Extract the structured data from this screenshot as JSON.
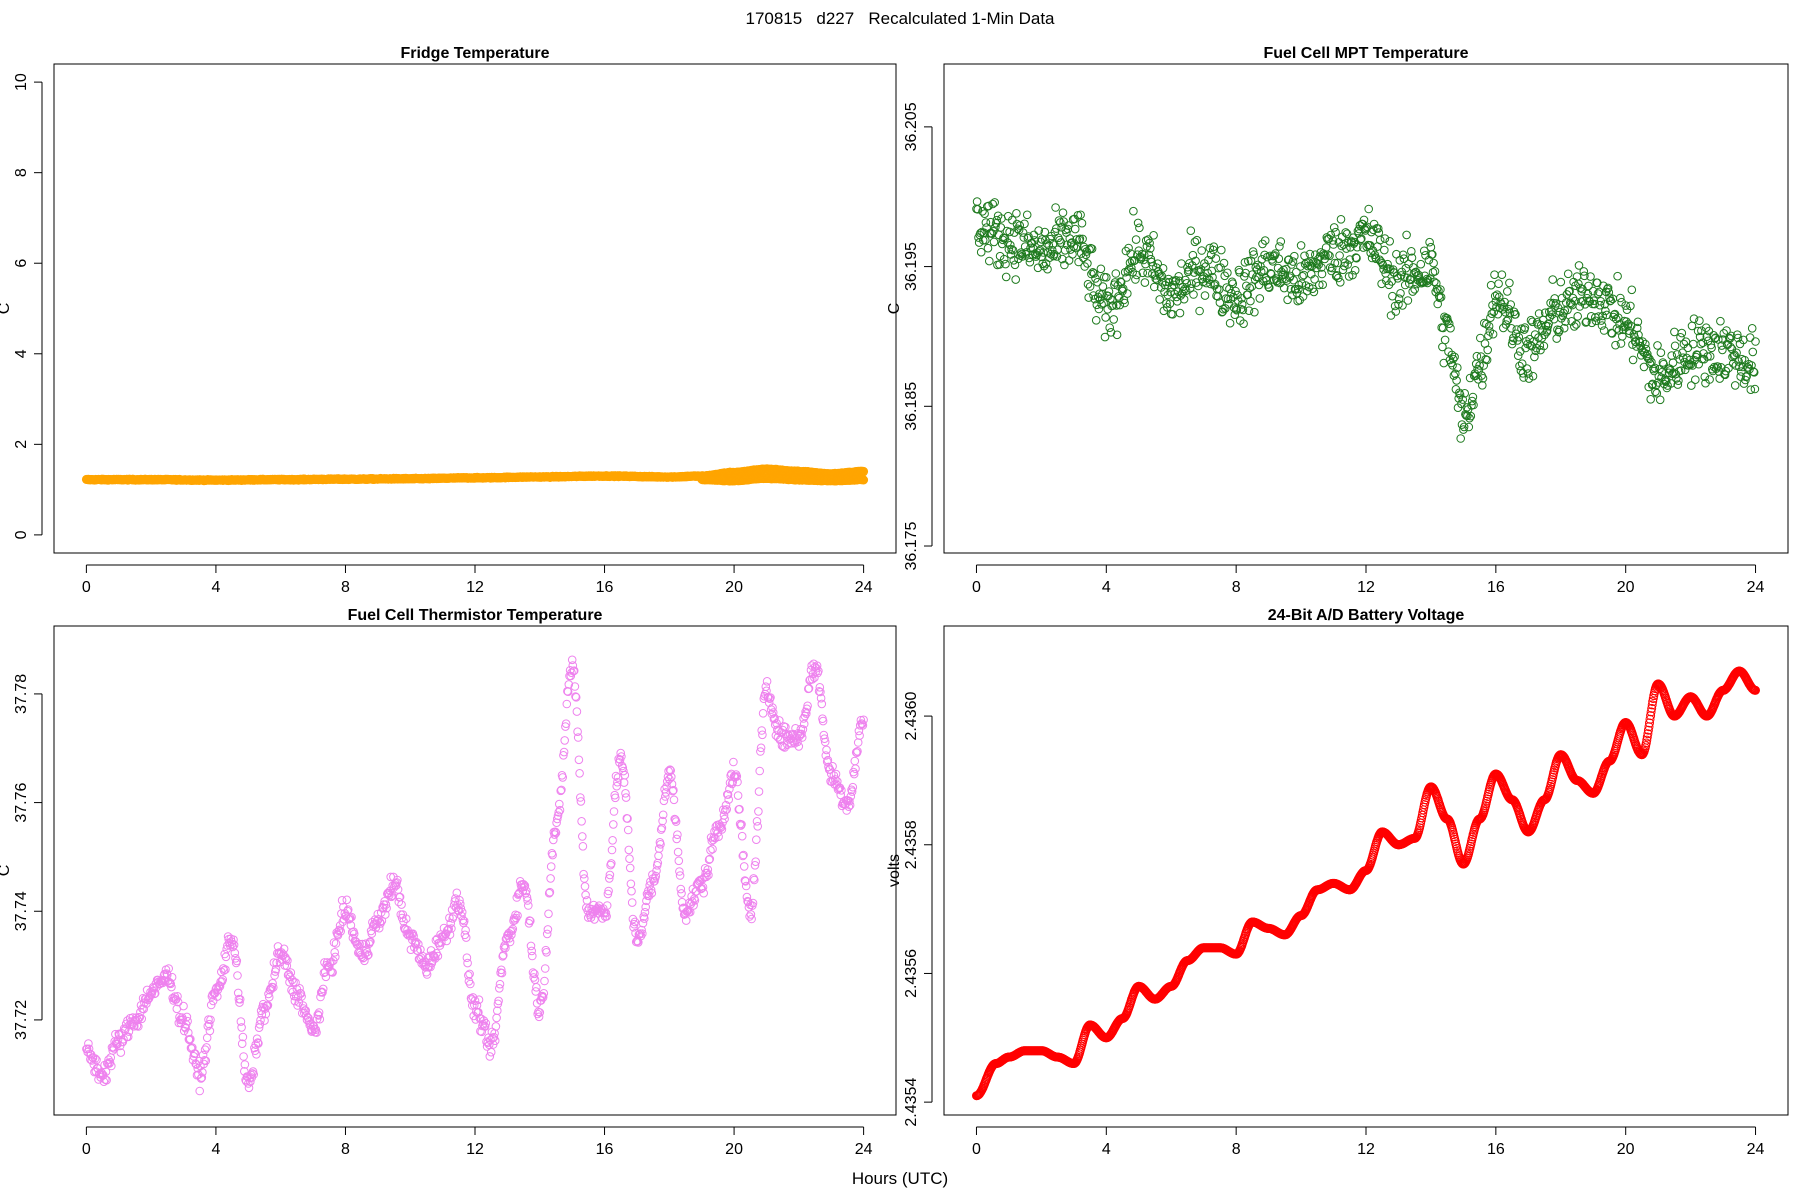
{
  "figure": {
    "title": "170815   d227   Recalculated 1-Min Data",
    "xlabel": "Hours (UTC)"
  },
  "chart_data": [
    {
      "type": "scatter",
      "title": "Fridge Temperature",
      "xlabel": "",
      "ylabel": "C",
      "xlim": [
        -1,
        25
      ],
      "ylim": [
        -0.4,
        10.4
      ],
      "xticks": [
        0,
        4,
        8,
        12,
        16,
        20,
        24
      ],
      "xtick_labels": [
        "0",
        "4",
        "8",
        "12",
        "16",
        "20",
        "24"
      ],
      "yticks": [
        0,
        2,
        4,
        6,
        8,
        10
      ],
      "ytick_labels": [
        "0",
        "2",
        "4",
        "6",
        "8",
        "10"
      ],
      "color": "#FFA500",
      "marker": "open-circle",
      "series": [
        {
          "x": [
            0,
            2,
            4,
            6,
            8,
            10,
            12,
            14,
            16,
            18,
            19,
            20,
            21,
            22,
            23,
            24
          ],
          "y": [
            1.22,
            1.22,
            1.21,
            1.22,
            1.23,
            1.24,
            1.26,
            1.28,
            1.3,
            1.28,
            1.3,
            1.38,
            1.45,
            1.4,
            1.35,
            1.4
          ]
        },
        {
          "x": [
            19,
            20,
            21,
            22,
            23,
            24
          ],
          "y": [
            1.22,
            1.2,
            1.25,
            1.22,
            1.2,
            1.22
          ]
        }
      ]
    },
    {
      "type": "scatter",
      "title": "Fuel Cell MPT Temperature",
      "xlabel": "",
      "ylabel": "C",
      "xlim": [
        -1,
        25
      ],
      "ylim": [
        36.1745,
        36.2095
      ],
      "xticks": [
        0,
        4,
        8,
        12,
        16,
        20,
        24
      ],
      "xtick_labels": [
        "0",
        "4",
        "8",
        "12",
        "16",
        "20",
        "24"
      ],
      "yticks": [
        36.175,
        36.185,
        36.195,
        36.205
      ],
      "ytick_labels": [
        "36.175",
        "36.185",
        "36.195",
        "36.205"
      ],
      "color": "#1E7A1E",
      "marker": "open-circle",
      "series": [
        {
          "x": [
            0,
            1,
            2,
            3,
            4,
            5,
            6,
            7,
            8,
            9,
            10,
            11,
            12,
            13,
            14,
            14.5,
            15,
            15.5,
            16,
            17,
            18,
            19,
            20,
            21,
            22,
            23,
            24
          ],
          "y": [
            36.198,
            36.197,
            36.196,
            36.197,
            36.192,
            36.196,
            36.193,
            36.195,
            36.193,
            36.195,
            36.194,
            36.196,
            36.197,
            36.194,
            36.195,
            36.19,
            36.184,
            36.188,
            36.193,
            36.189,
            36.192,
            36.193,
            36.191,
            36.187,
            36.189,
            36.189,
            36.188
          ]
        }
      ]
    },
    {
      "type": "scatter",
      "title": "Fuel Cell Thermistor Temperature",
      "xlabel": "",
      "ylabel": "C",
      "xlim": [
        -1,
        25
      ],
      "ylim": [
        37.7025,
        37.7925
      ],
      "xticks": [
        0,
        4,
        8,
        12,
        16,
        20,
        24
      ],
      "xtick_labels": [
        "0",
        "4",
        "8",
        "12",
        "16",
        "20",
        "24"
      ],
      "yticks": [
        37.72,
        37.74,
        37.76,
        37.78
      ],
      "ytick_labels": [
        "37.72",
        "37.74",
        "37.76",
        "37.78"
      ],
      "color": "#EE82EE",
      "marker": "open-circle",
      "series": [
        {
          "x": [
            0,
            0.5,
            1,
            1.5,
            2,
            2.5,
            3,
            3.5,
            4,
            4.5,
            5,
            5.5,
            6,
            6.5,
            7,
            7.5,
            8,
            8.5,
            9,
            9.5,
            10,
            10.5,
            11,
            11.5,
            12,
            12.5,
            13,
            13.5,
            14,
            14.5,
            15,
            15.5,
            16,
            16.5,
            17,
            17.5,
            18,
            18.5,
            19,
            19.5,
            20,
            20.5,
            21,
            21.5,
            22,
            22.5,
            23,
            23.5,
            24
          ],
          "y": [
            37.714,
            37.71,
            37.716,
            37.72,
            37.725,
            37.728,
            37.72,
            37.71,
            37.725,
            37.735,
            37.708,
            37.722,
            37.732,
            37.725,
            37.718,
            37.73,
            37.74,
            37.732,
            37.738,
            37.745,
            37.735,
            37.73,
            37.735,
            37.742,
            37.722,
            37.715,
            37.735,
            37.745,
            37.722,
            37.755,
            37.785,
            37.74,
            37.74,
            37.768,
            37.735,
            37.745,
            37.765,
            37.74,
            37.745,
            37.755,
            37.765,
            37.74,
            37.78,
            37.772,
            37.772,
            37.785,
            37.765,
            37.76,
            37.775
          ]
        }
      ]
    },
    {
      "type": "scatter",
      "title": "24-Bit A/D Battery Voltage",
      "xlabel": "",
      "ylabel": "volts",
      "xlim": [
        -1,
        25
      ],
      "ylim": [
        2.43538,
        2.43614
      ],
      "xticks": [
        0,
        4,
        8,
        12,
        16,
        20,
        24
      ],
      "xtick_labels": [
        "0",
        "4",
        "8",
        "12",
        "16",
        "20",
        "24"
      ],
      "yticks": [
        2.4354,
        2.4356,
        2.4358,
        2.436
      ],
      "ytick_labels": [
        "2.4354",
        "2.4356",
        "2.4358",
        "2.4360"
      ],
      "color": "#FF0000",
      "marker": "open-circle",
      "series": [
        {
          "x": [
            0,
            0.6,
            1,
            1.5,
            2,
            2.5,
            3,
            3.5,
            4,
            4.5,
            5,
            5.5,
            6,
            6.5,
            7,
            7.5,
            8,
            8.5,
            9,
            9.5,
            10,
            10.5,
            11,
            11.5,
            12,
            12.5,
            13,
            13.5,
            14,
            14.5,
            15,
            15.5,
            16,
            16.5,
            17,
            17.5,
            18,
            18.5,
            19,
            19.5,
            20,
            20.5,
            21,
            21.5,
            22,
            22.5,
            23,
            23.5,
            24
          ],
          "y": [
            2.43541,
            2.43546,
            2.43547,
            2.43548,
            2.43548,
            2.43547,
            2.43546,
            2.43552,
            2.4355,
            2.43553,
            2.43558,
            2.43556,
            2.43558,
            2.43562,
            2.43564,
            2.43564,
            2.43563,
            2.43568,
            2.43567,
            2.43566,
            2.43569,
            2.43573,
            2.43574,
            2.43573,
            2.43576,
            2.43582,
            2.4358,
            2.43581,
            2.43589,
            2.43584,
            2.43577,
            2.43584,
            2.43591,
            2.43587,
            2.43582,
            2.43587,
            2.43594,
            2.4359,
            2.43588,
            2.43593,
            2.43599,
            2.43594,
            2.43605,
            2.436,
            2.43603,
            2.436,
            2.43604,
            2.43607,
            2.43604
          ]
        }
      ]
    }
  ]
}
